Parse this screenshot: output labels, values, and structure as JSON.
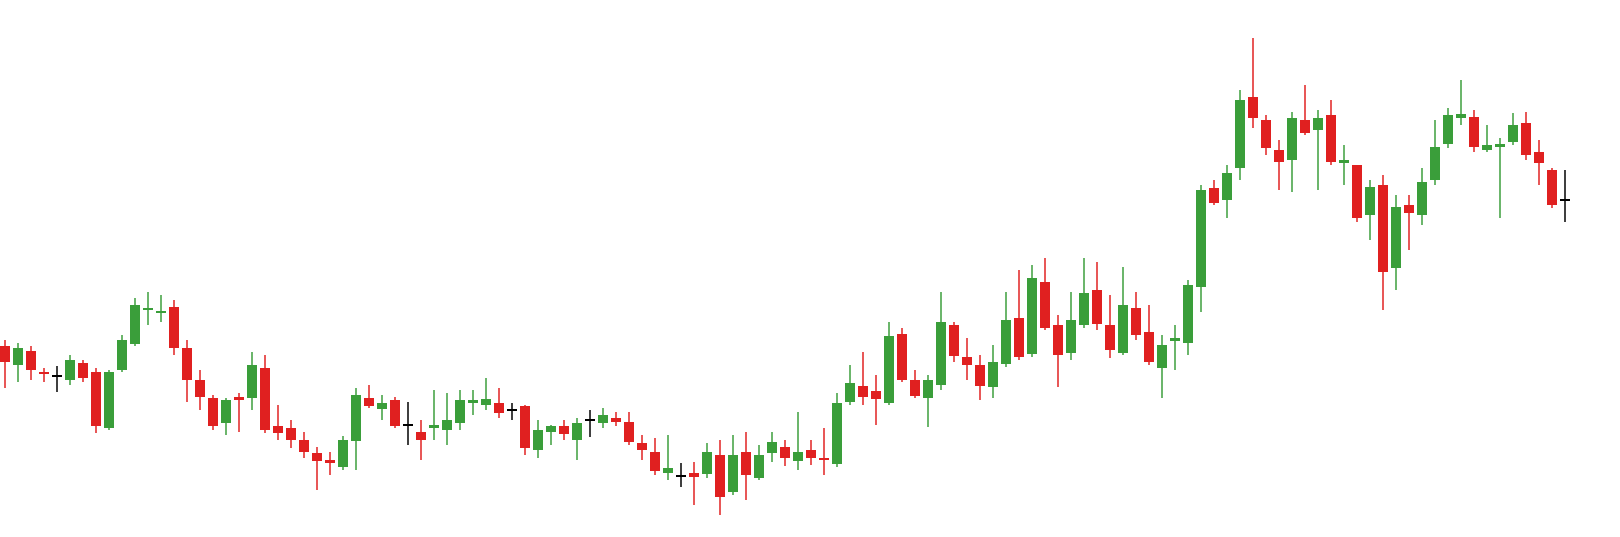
{
  "chart_data": {
    "type": "candlestick",
    "up_color": "#3a9e3a",
    "down_color": "#e02020",
    "flat_color": "#000000",
    "ylim": [
      0,
      537
    ],
    "open": [
      191,
      172,
      186,
      165,
      161,
      157,
      174,
      165,
      109,
      167,
      193,
      227,
      224,
      230,
      189,
      157,
      139,
      114,
      140,
      139,
      169,
      111,
      109,
      97,
      84,
      77,
      70,
      96,
      139,
      128,
      137,
      112,
      105,
      109,
      107,
      114,
      134,
      132,
      134,
      127,
      131,
      87,
      105,
      111,
      97,
      117,
      114,
      119,
      115,
      94,
      85,
      64,
      61,
      64,
      63,
      82,
      45,
      85,
      59,
      84,
      90,
      76,
      87,
      79,
      73,
      135,
      151,
      146,
      134,
      203,
      157,
      139,
      152,
      212,
      180,
      172,
      150,
      173,
      219,
      183,
      255,
      212,
      184,
      212,
      247,
      212,
      184,
      229,
      205,
      169,
      196,
      194,
      250,
      349,
      337,
      369,
      440,
      417,
      387,
      377,
      417,
      407,
      422,
      374,
      372,
      322,
      352,
      269,
      332,
      322,
      357,
      393,
      419,
      420,
      387,
      390,
      395,
      414,
      385,
      367,
      337
    ],
    "high": [
      197,
      194,
      191,
      169,
      171,
      182,
      177,
      169,
      167,
      202,
      239,
      245,
      242,
      237,
      197,
      167,
      142,
      139,
      144,
      185,
      182,
      132,
      117,
      105,
      90,
      85,
      101,
      149,
      152,
      142,
      140,
      135,
      117,
      147,
      144,
      147,
      147,
      159,
      149,
      134,
      132,
      117,
      112,
      117,
      119,
      127,
      129,
      125,
      125,
      102,
      99,
      102,
      74,
      75,
      94,
      97,
      102,
      105,
      92,
      105,
      97,
      125,
      97,
      109,
      144,
      172,
      185,
      162,
      215,
      209,
      167,
      162,
      245,
      215,
      199,
      182,
      192,
      245,
      267,
      272,
      279,
      222,
      245,
      279,
      275,
      242,
      270,
      245,
      232,
      202,
      212,
      257,
      352,
      357,
      372,
      447,
      499,
      422,
      397,
      425,
      452,
      427,
      437,
      392,
      372,
      357,
      362,
      342,
      342,
      369,
      417,
      429,
      457,
      427,
      412,
      399,
      424,
      425,
      397,
      369,
      367
    ],
    "low": [
      149,
      155,
      157,
      155,
      145,
      152,
      155,
      104,
      107,
      165,
      191,
      212,
      215,
      182,
      135,
      127,
      107,
      102,
      105,
      127,
      104,
      97,
      89,
      79,
      47,
      62,
      67,
      67,
      129,
      117,
      109,
      92,
      77,
      97,
      92,
      107,
      122,
      127,
      119,
      117,
      82,
      79,
      92,
      97,
      77,
      100,
      109,
      111,
      92,
      77,
      62,
      57,
      50,
      32,
      59,
      22,
      42,
      37,
      57,
      75,
      71,
      67,
      72,
      62,
      70,
      132,
      132,
      112,
      132,
      155,
      139,
      110,
      147,
      175,
      157,
      137,
      139,
      170,
      177,
      180,
      207,
      150,
      177,
      209,
      207,
      179,
      182,
      197,
      172,
      139,
      167,
      182,
      225,
      332,
      319,
      357,
      409,
      382,
      347,
      345,
      402,
      347,
      372,
      352,
      315,
      297,
      227,
      247,
      287,
      312,
      352,
      389,
      412,
      385,
      385,
      319,
      392,
      377,
      352,
      329,
      315
    ],
    "close": [
      175,
      189,
      167,
      163,
      161,
      177,
      159,
      111,
      165,
      197,
      232,
      229,
      226,
      189,
      157,
      140,
      111,
      137,
      137,
      172,
      107,
      104,
      97,
      85,
      76,
      74,
      97,
      142,
      131,
      134,
      111,
      112,
      97,
      112,
      117,
      137,
      137,
      138,
      124,
      127,
      89,
      107,
      111,
      103,
      114,
      117,
      122,
      115,
      95,
      87,
      66,
      69,
      61,
      60,
      85,
      40,
      82,
      62,
      82,
      95,
      79,
      85,
      79,
      77,
      134,
      154,
      140,
      138,
      201,
      157,
      141,
      157,
      215,
      181,
      172,
      151,
      175,
      217,
      180,
      259,
      209,
      182,
      217,
      244,
      213,
      187,
      232,
      202,
      175,
      192,
      199,
      252,
      347,
      334,
      364,
      437,
      419,
      389,
      375,
      419,
      404,
      419,
      375,
      377,
      319,
      350,
      265,
      330,
      324,
      355,
      390,
      422,
      423,
      390,
      392,
      393,
      412,
      382,
      374,
      332,
      337
    ]
  }
}
